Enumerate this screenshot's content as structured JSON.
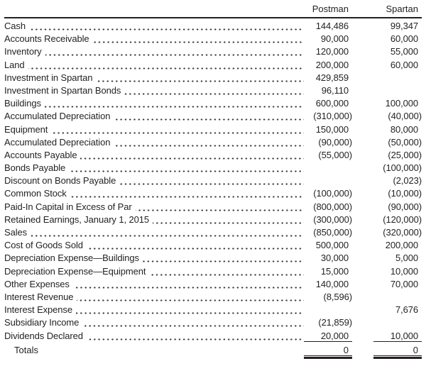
{
  "colors": {
    "text": "#231f20",
    "rule": "#231f20",
    "background": "#ffffff"
  },
  "table": {
    "columns": [
      "Postman",
      "Spartan"
    ],
    "rows": [
      {
        "label": "Cash",
        "postman": "144,486",
        "spartan": "99,347"
      },
      {
        "label": "Accounts Receivable",
        "postman": "90,000",
        "spartan": "60,000"
      },
      {
        "label": "Inventory",
        "postman": "120,000",
        "spartan": "55,000"
      },
      {
        "label": "Land",
        "postman": "200,000",
        "spartan": "60,000"
      },
      {
        "label": "Investment in Spartan",
        "postman": "429,859",
        "spartan": ""
      },
      {
        "label": "Investment in Spartan Bonds",
        "postman": "96,110",
        "spartan": ""
      },
      {
        "label": "Buildings",
        "postman": "600,000",
        "spartan": "100,000"
      },
      {
        "label": "Accumulated Depreciation",
        "postman": "(310,000)",
        "spartan": "(40,000)"
      },
      {
        "label": "Equipment",
        "postman": "150,000",
        "spartan": "80,000"
      },
      {
        "label": "Accumulated Depreciation",
        "postman": "(90,000)",
        "spartan": "(50,000)"
      },
      {
        "label": "Accounts Payable",
        "postman": "(55,000)",
        "spartan": "(25,000)"
      },
      {
        "label": "Bonds Payable",
        "postman": "",
        "spartan": "(100,000)"
      },
      {
        "label": "Discount on Bonds Payable",
        "postman": "",
        "spartan": "(2,023)"
      },
      {
        "label": "Common Stock",
        "postman": "(100,000)",
        "spartan": "(10,000)"
      },
      {
        "label": "Paid-In Capital in Excess of Par",
        "postman": "(800,000)",
        "spartan": "(90,000)"
      },
      {
        "label": "Retained Earnings, January 1, 2015",
        "postman": "(300,000)",
        "spartan": "(120,000)"
      },
      {
        "label": "Sales",
        "postman": "(850,000)",
        "spartan": "(320,000)"
      },
      {
        "label": "Cost of Goods Sold",
        "postman": "500,000",
        "spartan": "200,000"
      },
      {
        "label": "Depreciation Expense—Buildings",
        "postman": "30,000",
        "spartan": "5,000"
      },
      {
        "label": "Depreciation Expense—Equipment",
        "postman": "15,000",
        "spartan": "10,000"
      },
      {
        "label": "Other Expenses",
        "postman": "140,000",
        "spartan": "70,000"
      },
      {
        "label": "Interest Revenue",
        "postman": "(8,596)",
        "spartan": ""
      },
      {
        "label": "Interest Expense",
        "postman": "",
        "spartan": "7,676"
      },
      {
        "label": "Subsidiary Income",
        "postman": "(21,859)",
        "spartan": ""
      },
      {
        "label": "Dividends Declared",
        "postman": "20,000",
        "spartan": "10,000",
        "underline": true
      }
    ],
    "totals": {
      "label": "Totals",
      "postman": "0",
      "spartan": "0"
    }
  }
}
